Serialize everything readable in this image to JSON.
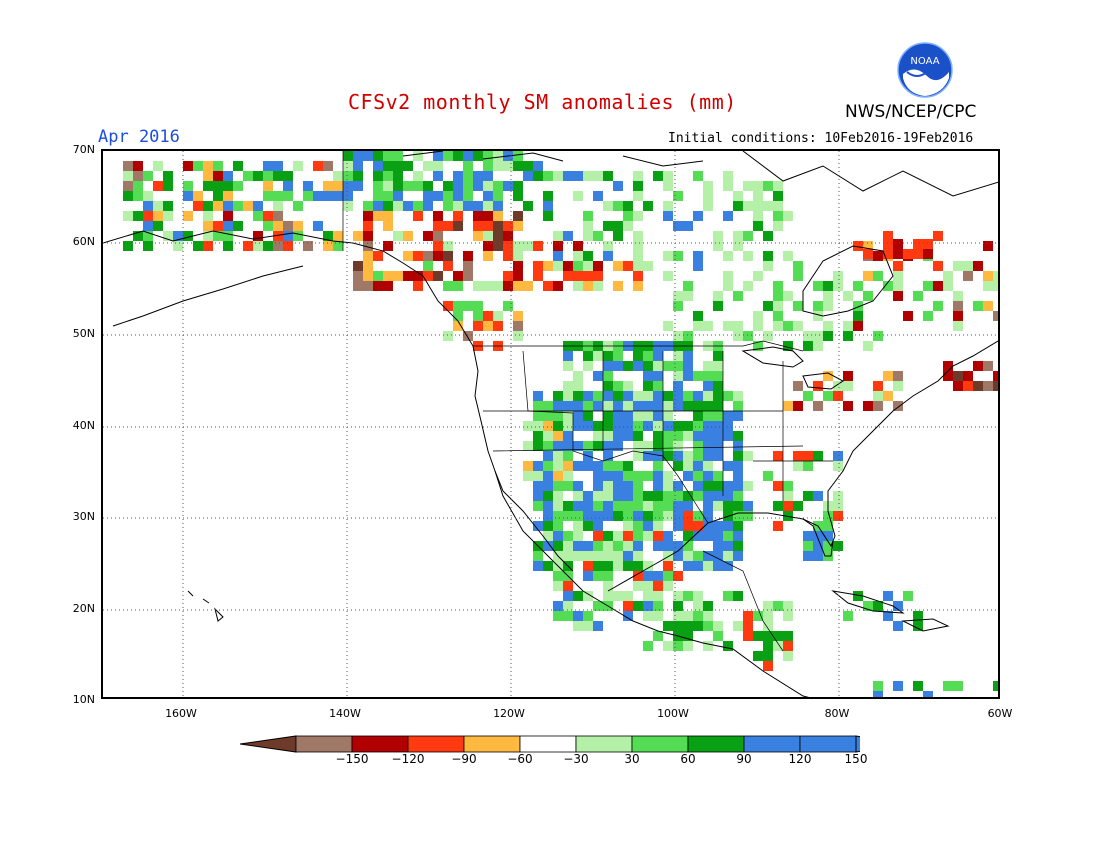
{
  "header": {
    "title": "CFSv2 monthly SM anomalies (mm)",
    "org": "NWS/NCEP/CPC",
    "logo_text": "NOAA",
    "month": "Apr 2016",
    "initial_conditions": "Initial conditions: 10Feb2016-19Feb2016"
  },
  "map": {
    "lat_labels": [
      "70N",
      "60N",
      "50N",
      "40N",
      "30N",
      "20N",
      "10N"
    ],
    "lon_labels": [
      "160W",
      "140W",
      "120W",
      "100W",
      "80W",
      "60W"
    ]
  },
  "legend": {
    "labels": [
      "-150",
      "-120",
      "-90",
      "-60",
      "-30",
      "30",
      "60",
      "90",
      "120",
      "150"
    ],
    "colors": [
      "#6e3b2a",
      "#a07868",
      "#b00000",
      "#ff3a10",
      "#ffb840",
      "#ffffff",
      "#b4f0a8",
      "#54dc54",
      "#0aa014",
      "#3a80e0",
      "#3a80e0"
    ]
  }
}
